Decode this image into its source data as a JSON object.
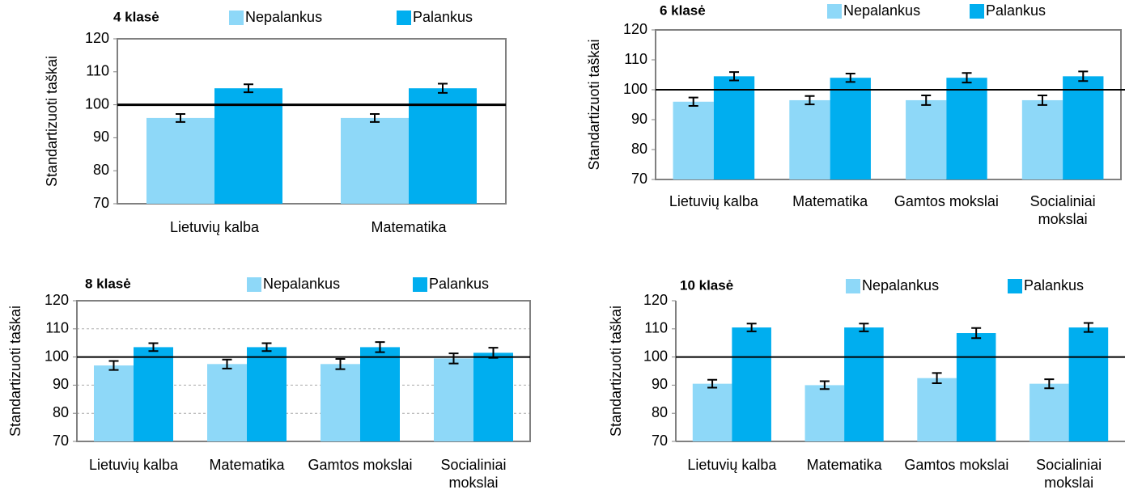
{
  "chart_data": [
    {
      "type": "bar",
      "title": "4 klasė",
      "y_label": "Standartizuoti taškai",
      "categories": [
        "Lietuvių kalba",
        "Matematika"
      ],
      "series": [
        {
          "name": "Nepalankus",
          "color": "#8ed8f8",
          "values": [
            96,
            96
          ],
          "errors": [
            1.2,
            1.2
          ]
        },
        {
          "name": "Palankus",
          "color": "#00aeef",
          "values": [
            105,
            105
          ],
          "errors": [
            1.2,
            1.4
          ]
        }
      ],
      "ylim": [
        70,
        120
      ],
      "yticks": [
        70,
        80,
        90,
        100,
        110,
        120
      ],
      "reference": 100,
      "grid": false,
      "frame": true
    },
    {
      "type": "bar",
      "title": "6 klasė",
      "y_label": "Standartizuoti taškai",
      "categories": [
        "Lietuvių kalba",
        "Matematika",
        "Gamtos mokslai",
        "Socialiniai mokslai"
      ],
      "series": [
        {
          "name": "Nepalankus",
          "color": "#8ed8f8",
          "values": [
            96,
            96.5,
            96.5,
            96.5
          ],
          "errors": [
            1.4,
            1.4,
            1.6,
            1.6
          ]
        },
        {
          "name": "Palankus",
          "color": "#00aeef",
          "values": [
            104.5,
            104,
            104,
            104.5
          ],
          "errors": [
            1.4,
            1.4,
            1.6,
            1.6
          ]
        }
      ],
      "ylim": [
        70,
        120
      ],
      "yticks": [
        70,
        80,
        90,
        100,
        110,
        120
      ],
      "reference": 100,
      "grid": false,
      "frame": true
    },
    {
      "type": "bar",
      "title": "8 klasė",
      "y_label": "Standartizuoti taškai",
      "categories": [
        "Lietuvių kalba",
        "Matematika",
        "Gamtos mokslai",
        "Socialiniai mokslai"
      ],
      "series": [
        {
          "name": "Nepalankus",
          "color": "#8ed8f8",
          "values": [
            97,
            97.5,
            97.5,
            99.5
          ],
          "errors": [
            1.6,
            1.6,
            1.8,
            1.8
          ]
        },
        {
          "name": "Palankus",
          "color": "#00aeef",
          "values": [
            103.5,
            103.5,
            103.5,
            101.5
          ],
          "errors": [
            1.4,
            1.4,
            1.8,
            1.8
          ]
        }
      ],
      "ylim": [
        70,
        120
      ],
      "yticks": [
        70,
        80,
        90,
        100,
        110,
        120
      ],
      "reference": 100,
      "grid": true,
      "frame": true
    },
    {
      "type": "bar",
      "title": "10 klasė",
      "y_label": "Standartizuoti taškai",
      "categories": [
        "Lietuvių kalba",
        "Matematika",
        "Gamtos mokslai",
        "Socialiniai mokslai"
      ],
      "series": [
        {
          "name": "Nepalankus",
          "color": "#8ed8f8",
          "values": [
            90.5,
            90,
            92.5,
            90.5
          ],
          "errors": [
            1.4,
            1.4,
            1.8,
            1.6
          ]
        },
        {
          "name": "Palankus",
          "color": "#00aeef",
          "values": [
            110.5,
            110.5,
            108.5,
            110.5
          ],
          "errors": [
            1.4,
            1.4,
            1.8,
            1.6
          ]
        }
      ],
      "ylim": [
        70,
        120
      ],
      "yticks": [
        70,
        80,
        90,
        100,
        110,
        120
      ],
      "reference": 100,
      "grid": false,
      "frame": false
    }
  ]
}
